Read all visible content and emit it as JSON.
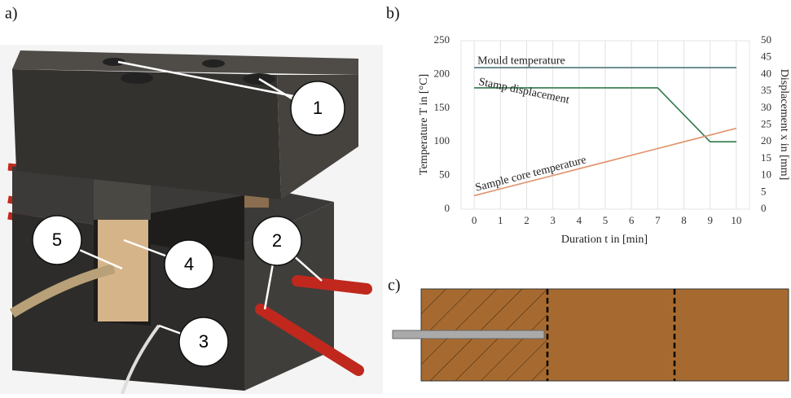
{
  "panels": {
    "a": "a)",
    "b": "b)",
    "c": "c)"
  },
  "photo": {
    "labels": [
      "1",
      "2",
      "3",
      "4",
      "5"
    ]
  },
  "chart_data": {
    "type": "line",
    "xlabel": "Duration t in [min]",
    "ylabel": "Temperature T in [°C]",
    "y2label": "Displacement x in [mm]",
    "x": [
      0,
      1,
      2,
      3,
      4,
      5,
      6,
      7,
      8,
      9,
      10
    ],
    "xlim": [
      -0.5,
      10.5
    ],
    "xticks": [
      0,
      1,
      2,
      3,
      4,
      5,
      6,
      7,
      8,
      9,
      10
    ],
    "ylim": [
      0,
      250
    ],
    "yticks": [
      0,
      50,
      100,
      150,
      200,
      250
    ],
    "y2lim": [
      0,
      50
    ],
    "y2ticks": [
      0,
      5,
      10,
      15,
      20,
      25,
      30,
      35,
      40,
      45,
      50
    ],
    "grid": true,
    "series": [
      {
        "name": "Mould temperature",
        "color": "#3f6a6e",
        "values": [
          210,
          210,
          210,
          210,
          210,
          210,
          210,
          210,
          210,
          210,
          210
        ]
      },
      {
        "name": "Stamp displacement",
        "color": "#2f7a4a",
        "axis": "y2",
        "values": [
          36,
          36,
          36,
          36,
          36,
          36,
          36,
          36,
          28,
          20,
          20
        ]
      },
      {
        "name": "Sample core temperature",
        "color": "#e0916a",
        "values": [
          20,
          30,
          40,
          50,
          60,
          70,
          80,
          90,
          100,
          110,
          120
        ]
      }
    ]
  }
}
